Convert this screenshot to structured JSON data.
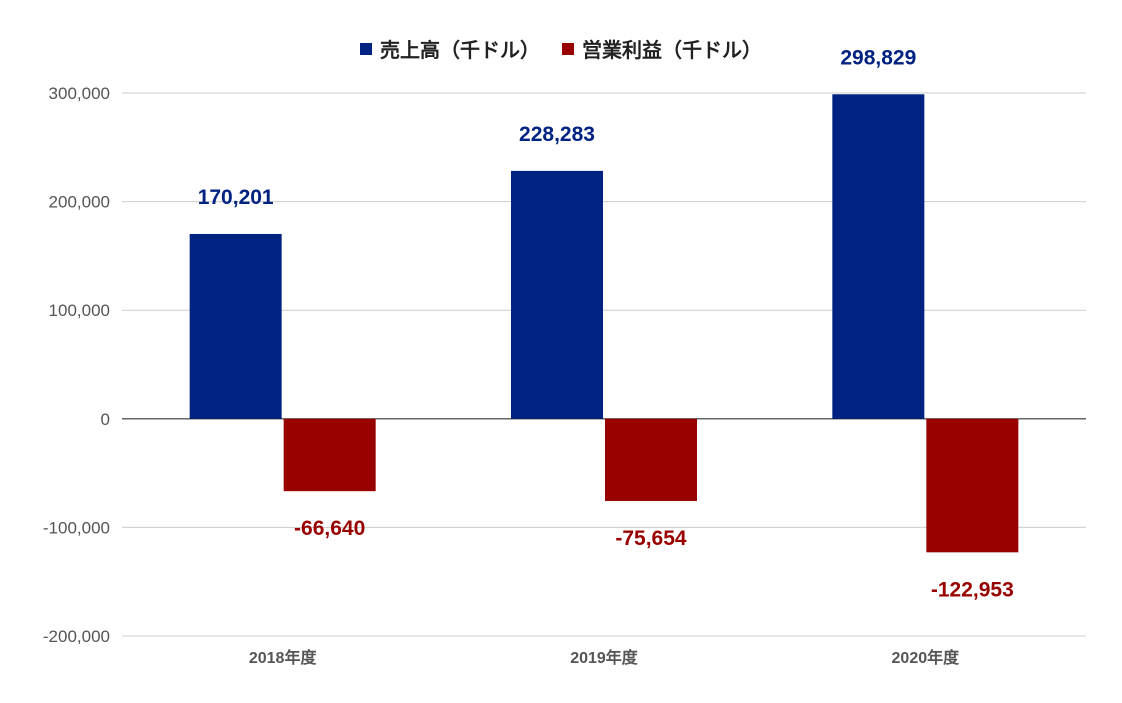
{
  "chart_data": {
    "type": "bar",
    "title": "",
    "xlabel": "",
    "ylabel": "",
    "categories": [
      "2018年度",
      "2019年度",
      "2020年度"
    ],
    "series": [
      {
        "name": "売上高（千ドル）",
        "color": "#002280",
        "values": [
          170201,
          228283,
          298829
        ],
        "labels": [
          "170,201",
          "228,283",
          "298,829"
        ]
      },
      {
        "name": "営業利益（千ドル）",
        "color": "#990000",
        "values": [
          -66640,
          -75654,
          -122953
        ],
        "labels": [
          "-66,640",
          "-75,654",
          "-122,953"
        ]
      }
    ],
    "ylim": [
      -200000,
      300000
    ],
    "yticks": [
      300000,
      200000,
      100000,
      0,
      -100000,
      -200000
    ],
    "ytick_labels": [
      "300,000",
      "200,000",
      "100,000",
      "0",
      "-100,000",
      "-200,000"
    ],
    "grid": true,
    "legend_position": "top-center"
  }
}
